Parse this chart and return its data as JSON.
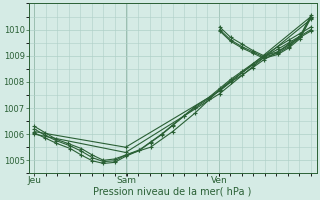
{
  "background_color": "#d5ebe5",
  "grid_color": "#afd0c8",
  "line_color": "#2a6035",
  "tick_label_color": "#2a6035",
  "xlabel": "Pression niveau de la mer( hPa )",
  "ylim": [
    1004.5,
    1010.8
  ],
  "yticks": [
    1005,
    1006,
    1007,
    1008,
    1009,
    1010
  ],
  "xtick_labels": [
    "Jeu",
    "Sam",
    "Ven"
  ],
  "xtick_positions": [
    0.0,
    0.333,
    0.667
  ],
  "series": [
    {
      "x": [
        0.0,
        0.04,
        0.08,
        0.12,
        0.17,
        0.21,
        0.25,
        0.29,
        0.33,
        0.38,
        0.42,
        0.46,
        0.5,
        0.54,
        0.58,
        0.63,
        0.67,
        0.71,
        0.75,
        0.79,
        0.83,
        0.88,
        0.92,
        0.96,
        1.0
      ],
      "y": [
        1006.3,
        1006.05,
        1005.8,
        1005.65,
        1005.45,
        1005.2,
        1005.0,
        1005.05,
        1005.2,
        1005.4,
        1005.7,
        1006.0,
        1006.35,
        1006.7,
        1007.05,
        1007.4,
        1007.75,
        1008.1,
        1008.4,
        1008.7,
        1009.0,
        1009.35,
        1009.6,
        1009.85,
        1010.1
      ]
    },
    {
      "x": [
        0.0,
        0.04,
        0.08,
        0.13,
        0.17,
        0.21,
        0.25,
        0.29,
        0.33,
        0.38,
        0.42,
        0.46,
        0.5,
        0.54,
        0.58,
        0.63,
        0.67,
        0.71,
        0.75,
        0.79,
        0.83,
        0.88,
        0.92,
        0.96,
        1.0
      ],
      "y": [
        1006.05,
        1005.85,
        1005.65,
        1005.45,
        1005.2,
        1004.98,
        1004.88,
        1004.92,
        1005.15,
        1005.38,
        1005.68,
        1005.98,
        1006.33,
        1006.68,
        1007.0,
        1007.35,
        1007.7,
        1008.05,
        1008.35,
        1008.65,
        1008.95,
        1009.25,
        1009.5,
        1009.75,
        1010.0
      ]
    },
    {
      "x": [
        0.0,
        0.33,
        0.67,
        1.0
      ],
      "y": [
        1006.1,
        1005.5,
        1007.65,
        1010.5
      ]
    },
    {
      "x": [
        0.0,
        0.33,
        0.67,
        1.0
      ],
      "y": [
        1006.0,
        1005.3,
        1007.55,
        1010.4
      ]
    },
    {
      "x": [
        0.0,
        0.04,
        0.08,
        0.13,
        0.17,
        0.21,
        0.25,
        0.29,
        0.33,
        0.42,
        0.5,
        0.58,
        0.67,
        0.71,
        0.75,
        0.79,
        0.83,
        0.88,
        0.92,
        0.96,
        1.0
      ],
      "y": [
        1006.2,
        1005.95,
        1005.75,
        1005.55,
        1005.35,
        1005.1,
        1004.95,
        1004.98,
        1005.2,
        1005.5,
        1006.1,
        1006.8,
        1007.7,
        1008.0,
        1008.25,
        1008.55,
        1008.85,
        1009.15,
        1009.45,
        1009.7,
        1009.95
      ]
    },
    {
      "x": [
        0.67,
        0.71,
        0.75,
        0.79,
        0.83,
        0.88,
        0.92,
        0.96,
        1.0
      ],
      "y": [
        1010.1,
        1009.7,
        1009.45,
        1009.2,
        1009.0,
        1009.15,
        1009.4,
        1009.75,
        1010.55
      ]
    },
    {
      "x": [
        0.67,
        0.71,
        0.75,
        0.79,
        0.83,
        0.88,
        0.92,
        0.96,
        1.0
      ],
      "y": [
        1009.95,
        1009.55,
        1009.3,
        1009.1,
        1008.9,
        1009.05,
        1009.3,
        1009.65,
        1010.45
      ]
    },
    {
      "x": [
        0.67,
        0.71,
        0.75,
        0.79,
        0.83,
        0.88,
        0.92,
        0.96,
        1.0
      ],
      "y": [
        1010.0,
        1009.6,
        1009.35,
        1009.15,
        1008.95,
        1009.1,
        1009.35,
        1009.7,
        1010.5
      ]
    }
  ],
  "figsize": [
    3.2,
    2.0
  ],
  "dpi": 100
}
